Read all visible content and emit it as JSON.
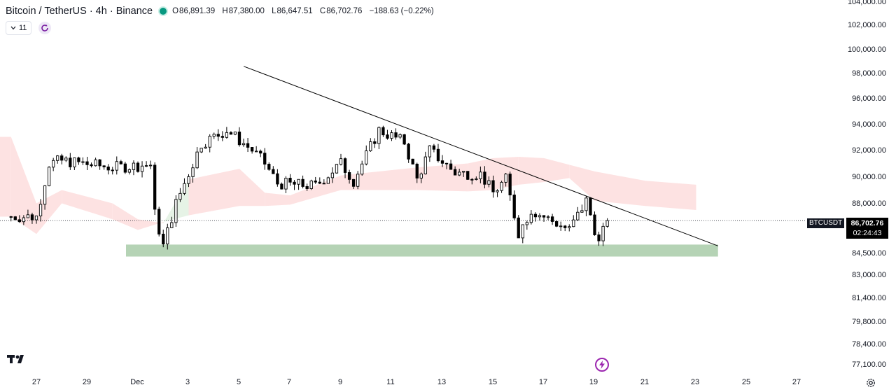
{
  "header": {
    "symbol_title": "Bitcoin / TetherUS · 4h · Binance",
    "ohlc": [
      {
        "k": "O",
        "v": "86,891.39"
      },
      {
        "k": "H",
        "v": "87,380.00"
      },
      {
        "k": "L",
        "v": "86,647.51"
      },
      {
        "k": "C",
        "v": "86,702.76"
      },
      {
        "k": "",
        "v": "−188.63 (−0.22%)"
      }
    ],
    "indicators_count": "11"
  },
  "price_axis": {
    "labels": [
      "104,000.00",
      "102,000.00",
      "100,000.00",
      "98,000.00",
      "96,000.00",
      "94,000.00",
      "92,000.00",
      "90,000.00",
      "88,000.00",
      "84,500.00",
      "83,000.00",
      "81,400.00",
      "79,800.00",
      "78,400.00",
      "77,100.00"
    ],
    "symbol_tag": "BTCUSDT",
    "last_price": "86,702.76",
    "countdown": "02:24:43"
  },
  "time_axis": {
    "labels": [
      "27",
      "29",
      "Dec",
      "3",
      "5",
      "7",
      "9",
      "11",
      "13",
      "15",
      "17",
      "19",
      "21",
      "23",
      "25",
      "27"
    ]
  },
  "colors": {
    "candle_body": "#000000",
    "cloud_bull": "#e6f3e6",
    "cloud_bear": "#fde2e2",
    "support_zone": "#b5d3b5",
    "trendline": "#000000",
    "accent": "#9c27b0",
    "status_dot": "#089981"
  },
  "icons": {
    "logo": "tradingview-logo-icon",
    "sync": "sync-icon",
    "flash": "lightning-icon",
    "settings": "gear-icon"
  },
  "chart_data": {
    "type": "candlestick",
    "title": "Bitcoin / TetherUS · 4h · Binance",
    "xlabel": "",
    "ylabel": "",
    "x_range": [
      "Nov 26",
      "Dec 28"
    ],
    "ylim": [
      76700,
      104200
    ],
    "grid": false,
    "last_price": 86702.76,
    "ohlc_waypoints": [
      {
        "x": "Nov 26",
        "close": 87000
      },
      {
        "x": "Nov 27",
        "close": 87000
      },
      {
        "x": "Nov 27 12:00",
        "close": 91000
      },
      {
        "x": "Nov 28",
        "close": 91200
      },
      {
        "x": "Nov 30",
        "close": 90700
      },
      {
        "x": "Dec 1 12:00",
        "close": 90900
      },
      {
        "x": "Dec 1 16:00",
        "close": 87200
      },
      {
        "x": "Dec 2",
        "close": 84800
      },
      {
        "x": "Dec 2 12:00",
        "close": 88000
      },
      {
        "x": "Dec 3 12:00",
        "close": 92500
      },
      {
        "x": "Dec 4 12:00",
        "close": 93500
      },
      {
        "x": "Dec 5 12:00",
        "close": 92000
      },
      {
        "x": "Dec 6",
        "close": 91000
      },
      {
        "x": "Dec 6 12:00",
        "close": 89500
      },
      {
        "x": "Dec 8",
        "close": 89300
      },
      {
        "x": "Dec 9",
        "close": 91000
      },
      {
        "x": "Dec 9 12:00",
        "close": 89700
      },
      {
        "x": "Dec 10 12:00",
        "close": 93500
      },
      {
        "x": "Dec 11 12:00",
        "close": 92600
      },
      {
        "x": "Dec 12",
        "close": 89800
      },
      {
        "x": "Dec 12 12:00",
        "close": 92000
      },
      {
        "x": "Dec 13 12:00",
        "close": 90300
      },
      {
        "x": "Dec 14 12:00",
        "close": 90200
      },
      {
        "x": "Dec 15",
        "close": 88800
      },
      {
        "x": "Dec 15 12:00",
        "close": 89800
      },
      {
        "x": "Dec 16",
        "close": 85800
      },
      {
        "x": "Dec 16 12:00",
        "close": 87500
      },
      {
        "x": "Dec 17 12:00",
        "close": 86500
      },
      {
        "x": "Dec 18",
        "close": 86000
      },
      {
        "x": "Dec 18 16:00",
        "close": 88200
      },
      {
        "x": "Dec 19 04:00",
        "close": 85000
      },
      {
        "x": "Dec 19 12:00",
        "close": 86703
      }
    ],
    "support_zone": {
      "from": "Dec 1",
      "to": "Dec 24",
      "low": 84000,
      "high": 84900
    },
    "trendline": [
      {
        "x": "Dec 6",
        "y": 98300
      },
      {
        "x": "Dec 24",
        "y": 84800
      }
    ],
    "ichimoku_cloud": [
      {
        "x": "Nov 26",
        "a": 93000,
        "b": 87000
      },
      {
        "x": "Nov 27",
        "a": 88000,
        "b": 85700
      },
      {
        "x": "Nov 28",
        "a": 89000,
        "b": 88000
      },
      {
        "x": "Nov 30",
        "a": 88000,
        "b": 86800
      },
      {
        "x": "Dec 1",
        "a": 86800,
        "b": 86000
      },
      {
        "x": "Dec 2",
        "a": 86500,
        "b": 86600
      },
      {
        "x": "Dec 3",
        "a": 89800,
        "b": 87100
      },
      {
        "x": "Dec 5",
        "a": 90600,
        "b": 87800
      },
      {
        "x": "Dec 6",
        "a": 88800,
        "b": 87800
      },
      {
        "x": "Dec 7",
        "a": 88600,
        "b": 87900
      },
      {
        "x": "Dec 9",
        "a": 90100,
        "b": 89000
      },
      {
        "x": "Dec 12",
        "a": 90700,
        "b": 89000
      },
      {
        "x": "Dec 14",
        "a": 91000,
        "b": 88900
      },
      {
        "x": "Dec 15",
        "a": 91400,
        "b": 89000
      },
      {
        "x": "Dec 16",
        "a": 91500,
        "b": 89400
      },
      {
        "x": "Dec 17",
        "a": 91400,
        "b": 89600
      },
      {
        "x": "Dec 18",
        "a": 90900,
        "b": 89900
      },
      {
        "x": "Dec 19",
        "a": 90400,
        "b": 88200
      },
      {
        "x": "Dec 21",
        "a": 89700,
        "b": 87800
      },
      {
        "x": "Dec 23",
        "a": 89400,
        "b": 87500
      }
    ]
  }
}
